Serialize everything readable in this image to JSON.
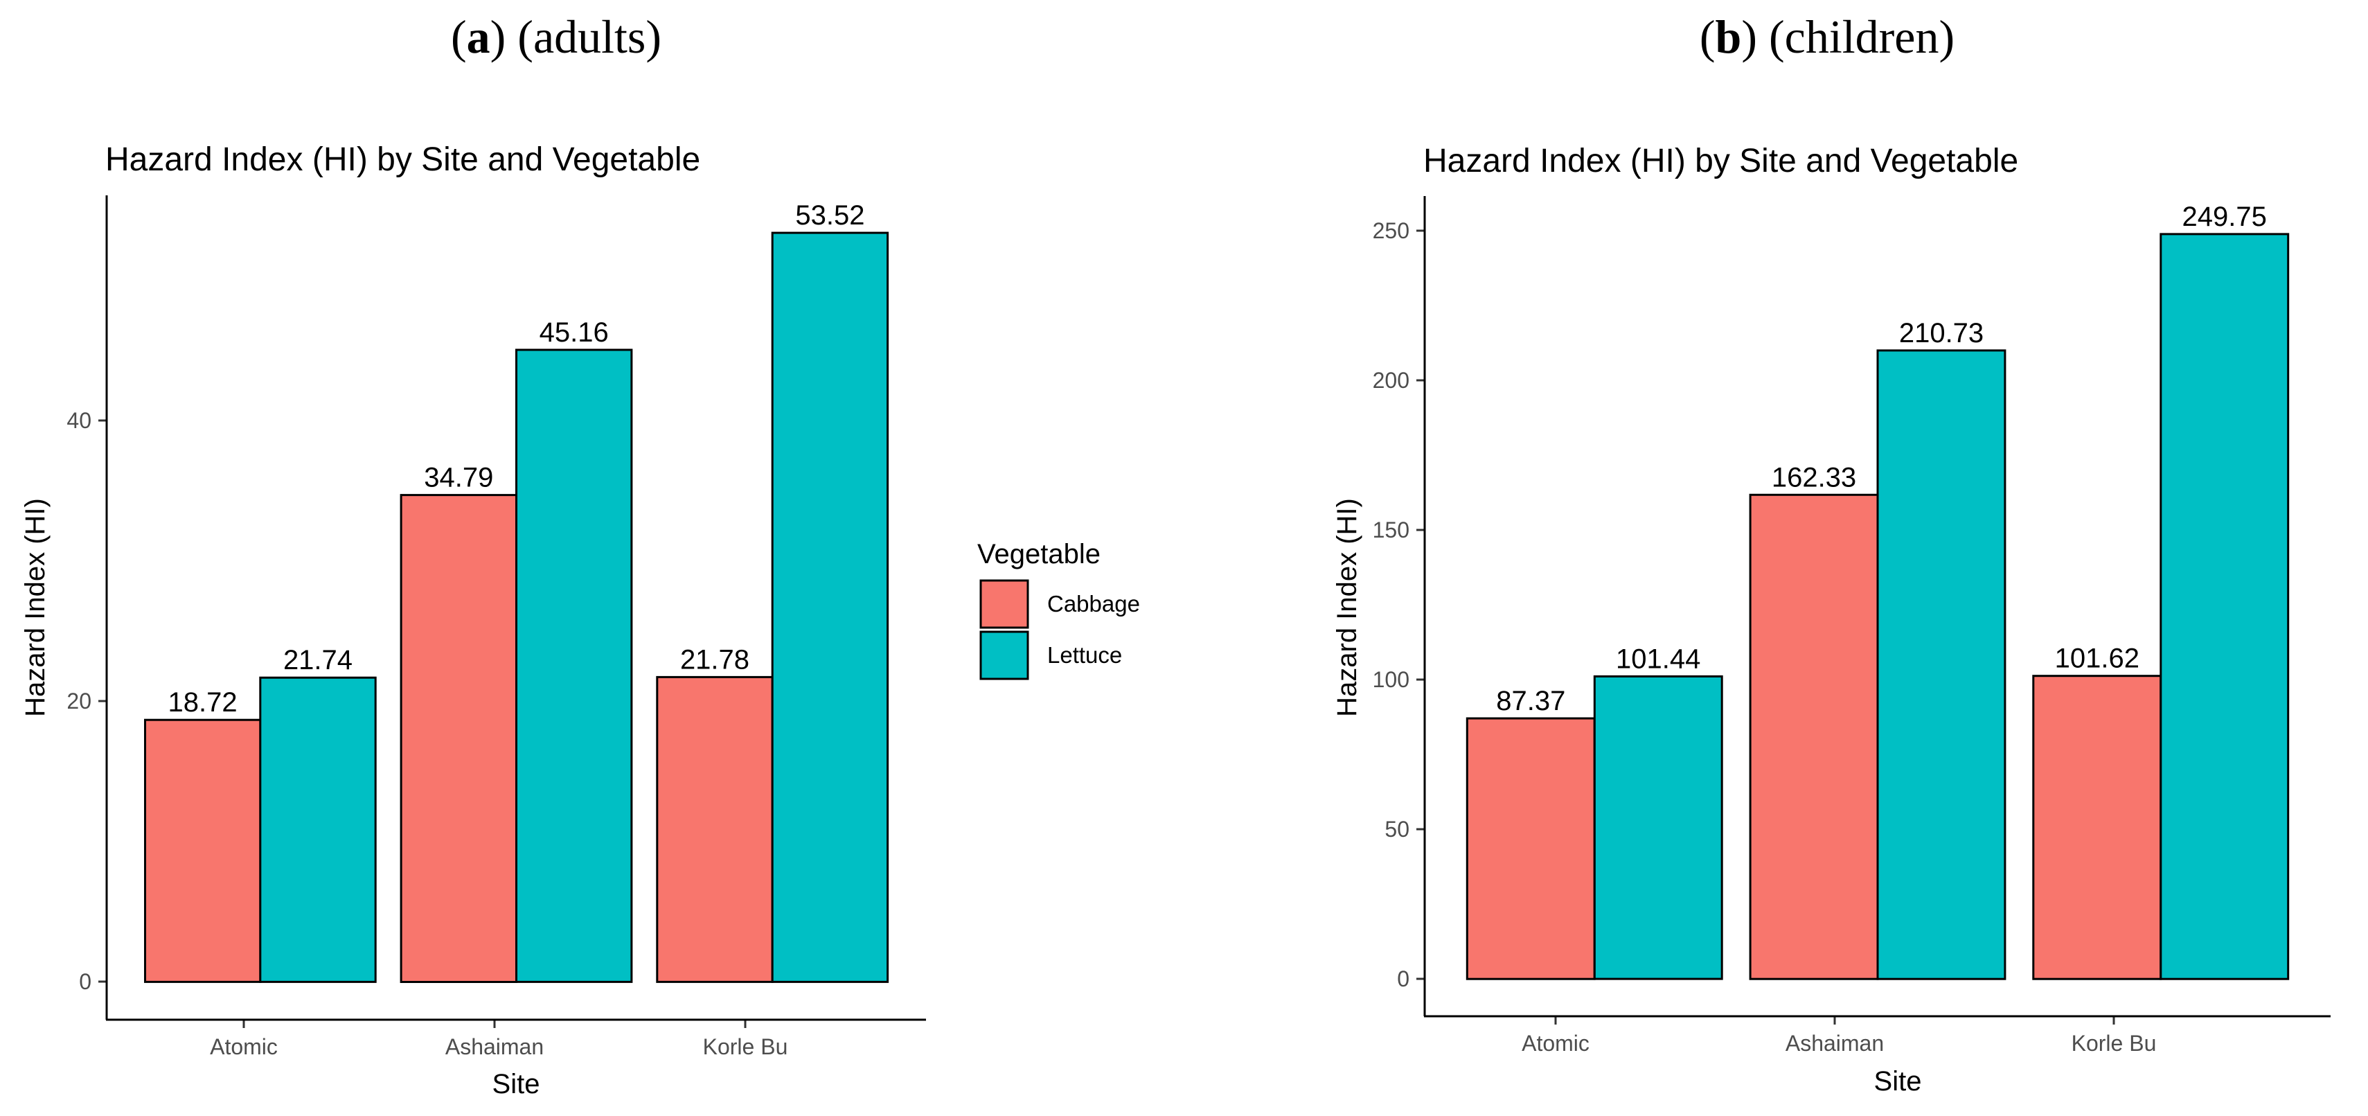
{
  "panels": [
    {
      "letter": "a",
      "caption": "(adults)"
    },
    {
      "letter": "b",
      "caption": "(children)"
    }
  ],
  "colors": {
    "cabbage": "#F8766D",
    "lettuce": "#00BFC4"
  },
  "legend": {
    "title": "Vegetable",
    "items": [
      {
        "label": "Cabbage",
        "color": "#F8766D"
      },
      {
        "label": "Lettuce",
        "color": "#00BFC4"
      }
    ]
  },
  "chart_data": [
    {
      "type": "bar",
      "title": "Hazard Index (HI) by Site and Vegetable",
      "xlabel": "Site",
      "ylabel": "Hazard Index (HI)",
      "categories": [
        "Atomic",
        "Ashaiman",
        "Korle Bu"
      ],
      "series": [
        {
          "name": "Cabbage",
          "values": [
            18.72,
            34.79,
            21.78
          ],
          "labels": [
            "18.72",
            "34.79",
            "21.78"
          ]
        },
        {
          "name": "Lettuce",
          "values": [
            21.74,
            45.16,
            53.52
          ],
          "labels": [
            "21.74",
            "45.16",
            "53.52"
          ]
        }
      ],
      "ylim": [
        -2.7,
        56.2
      ],
      "yticks": [
        0,
        20,
        40
      ],
      "ytick_labels": [
        "0",
        "20",
        "40"
      ]
    },
    {
      "type": "bar",
      "title": "Hazard Index (HI) by Site and Vegetable",
      "xlabel": "Site",
      "ylabel": "Hazard Index (HI)",
      "categories": [
        "Atomic",
        "Ashaiman",
        "Korle Bu"
      ],
      "series": [
        {
          "name": "Cabbage",
          "values": [
            87.37,
            162.33,
            101.62
          ],
          "labels": [
            "87.37",
            "162.33",
            "101.62"
          ]
        },
        {
          "name": "Lettuce",
          "values": [
            101.44,
            210.73,
            249.75
          ],
          "labels": [
            "101.44",
            "210.73",
            "249.75"
          ]
        }
      ],
      "ylim": [
        -12.5,
        262.5
      ],
      "yticks": [
        0,
        50,
        100,
        150,
        200,
        250
      ],
      "ytick_labels": [
        "0",
        "50",
        "100",
        "150",
        "200",
        "250"
      ]
    }
  ]
}
